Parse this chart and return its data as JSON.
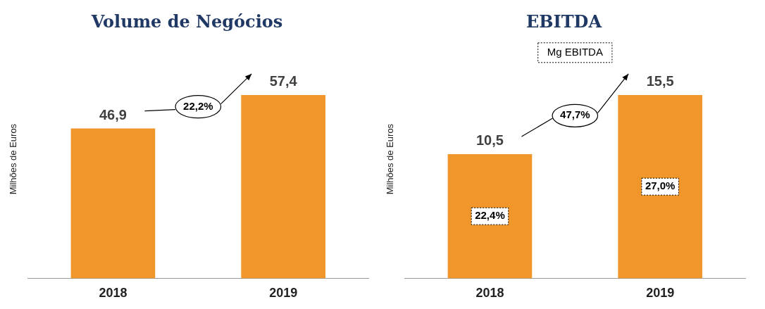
{
  "chart_data": [
    {
      "type": "bar",
      "title": "Volume de Negócios",
      "ylabel": "Milhões de Euros",
      "categories": [
        "2018",
        "2019"
      ],
      "values": [
        46.9,
        57.4
      ],
      "value_labels": [
        "46,9",
        "57,4"
      ],
      "color": "#f0962a",
      "legend": false,
      "annotations": [
        "22,2%"
      ]
    },
    {
      "type": "bar",
      "title": "EBITDA",
      "subtitle": "Mg EBITDA",
      "ylabel": "Milhões de Euros",
      "categories": [
        "2018",
        "2019"
      ],
      "values": [
        10.5,
        15.5
      ],
      "value_labels": [
        "10,5",
        "15,5"
      ],
      "color": "#f0962a",
      "legend": false,
      "annotations": [
        "47,7%",
        "22,4%",
        "27,0%"
      ]
    }
  ]
}
